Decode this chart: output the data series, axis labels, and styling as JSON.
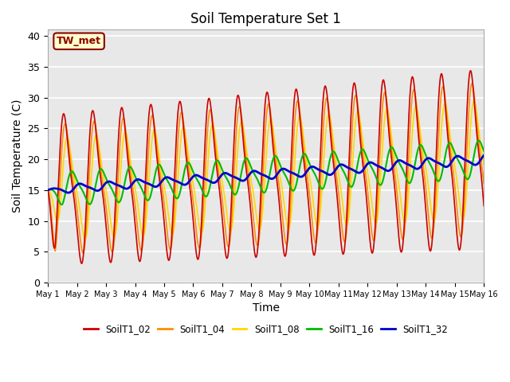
{
  "title": "Soil Temperature Set 1",
  "xlabel": "Time",
  "ylabel": "Soil Temperature (C)",
  "annotation": "TW_met",
  "annotation_color": "#8B0000",
  "annotation_bg": "#FFFFCC",
  "annotation_border": "#8B0000",
  "ylim": [
    0,
    41
  ],
  "yticks": [
    0,
    5,
    10,
    15,
    20,
    25,
    30,
    35,
    40
  ],
  "xlim_start": 0,
  "xlim_end": 15,
  "xtick_labels": [
    "May 1",
    "May 2",
    "May 3",
    "May 4",
    "May 5",
    "May 6",
    "May 7",
    "May 8",
    "May 9",
    "May 10",
    "May 11",
    "May 12",
    "May 13",
    "May 14",
    "May 15",
    "May 16"
  ],
  "series": [
    {
      "label": "SoilT1_02",
      "color": "#CC0000",
      "lw": 1.2
    },
    {
      "label": "SoilT1_04",
      "color": "#FF8C00",
      "lw": 1.2
    },
    {
      "label": "SoilT1_08",
      "color": "#FFD700",
      "lw": 1.2
    },
    {
      "label": "SoilT1_16",
      "color": "#00BB00",
      "lw": 1.5
    },
    {
      "label": "SoilT1_32",
      "color": "#0000CC",
      "lw": 2.0
    }
  ],
  "bg_color": "#E8E8E8",
  "grid_color": "#FFFFFF"
}
